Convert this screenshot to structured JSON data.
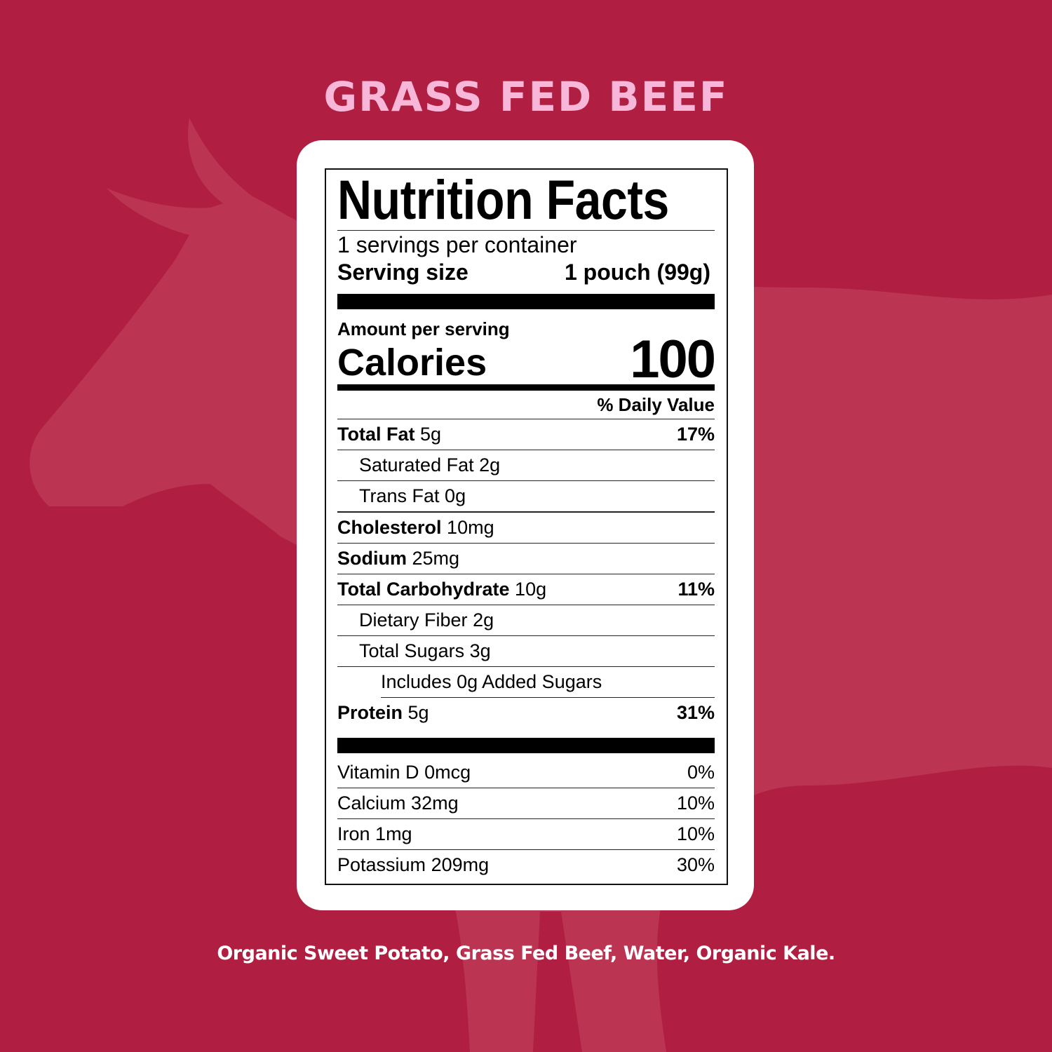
{
  "colors": {
    "background": "#b01f41",
    "silhouette": "#bb3553",
    "title": "#f8b7d8"
  },
  "title": "GRASS FED BEEF",
  "label": {
    "heading": "Nutrition Facts",
    "servings_per_container": "1 servings per container",
    "serving_size_label": "Serving size",
    "serving_size_value": "1 pouch (99g)",
    "amount_per_serving": "Amount per serving",
    "calories_label": "Calories",
    "calories_value": "100",
    "daily_value_header": "% Daily Value",
    "nutrients": [
      {
        "name": "Total Fat",
        "amount": "5g",
        "dv": "17%"
      },
      {
        "name": "Saturated Fat",
        "amount": "2g",
        "dv": ""
      },
      {
        "name": "Trans Fat",
        "amount": "0g",
        "dv": ""
      },
      {
        "name": "Cholesterol",
        "amount": "10mg",
        "dv": ""
      },
      {
        "name": "Sodium",
        "amount": "25mg",
        "dv": ""
      },
      {
        "name": "Total Carbohydrate",
        "amount": "10g",
        "dv": "11%"
      },
      {
        "name": "Dietary Fiber",
        "amount": "2g",
        "dv": ""
      },
      {
        "name": "Total Sugars",
        "amount": "3g",
        "dv": ""
      },
      {
        "name": "Includes 0g Added Sugars",
        "amount": "",
        "dv": ""
      },
      {
        "name": "Protein",
        "amount": "5g",
        "dv": "31%"
      }
    ],
    "vitamins": [
      {
        "name": "Vitamin D",
        "amount": "0mcg",
        "dv": "0%"
      },
      {
        "name": "Calcium",
        "amount": "32mg",
        "dv": "10%"
      },
      {
        "name": "Iron",
        "amount": "1mg",
        "dv": "10%"
      },
      {
        "name": "Potassium",
        "amount": "209mg",
        "dv": "30%"
      }
    ]
  },
  "ingredients": "Organic Sweet Potato, Grass Fed Beef, Water, Organic Kale."
}
